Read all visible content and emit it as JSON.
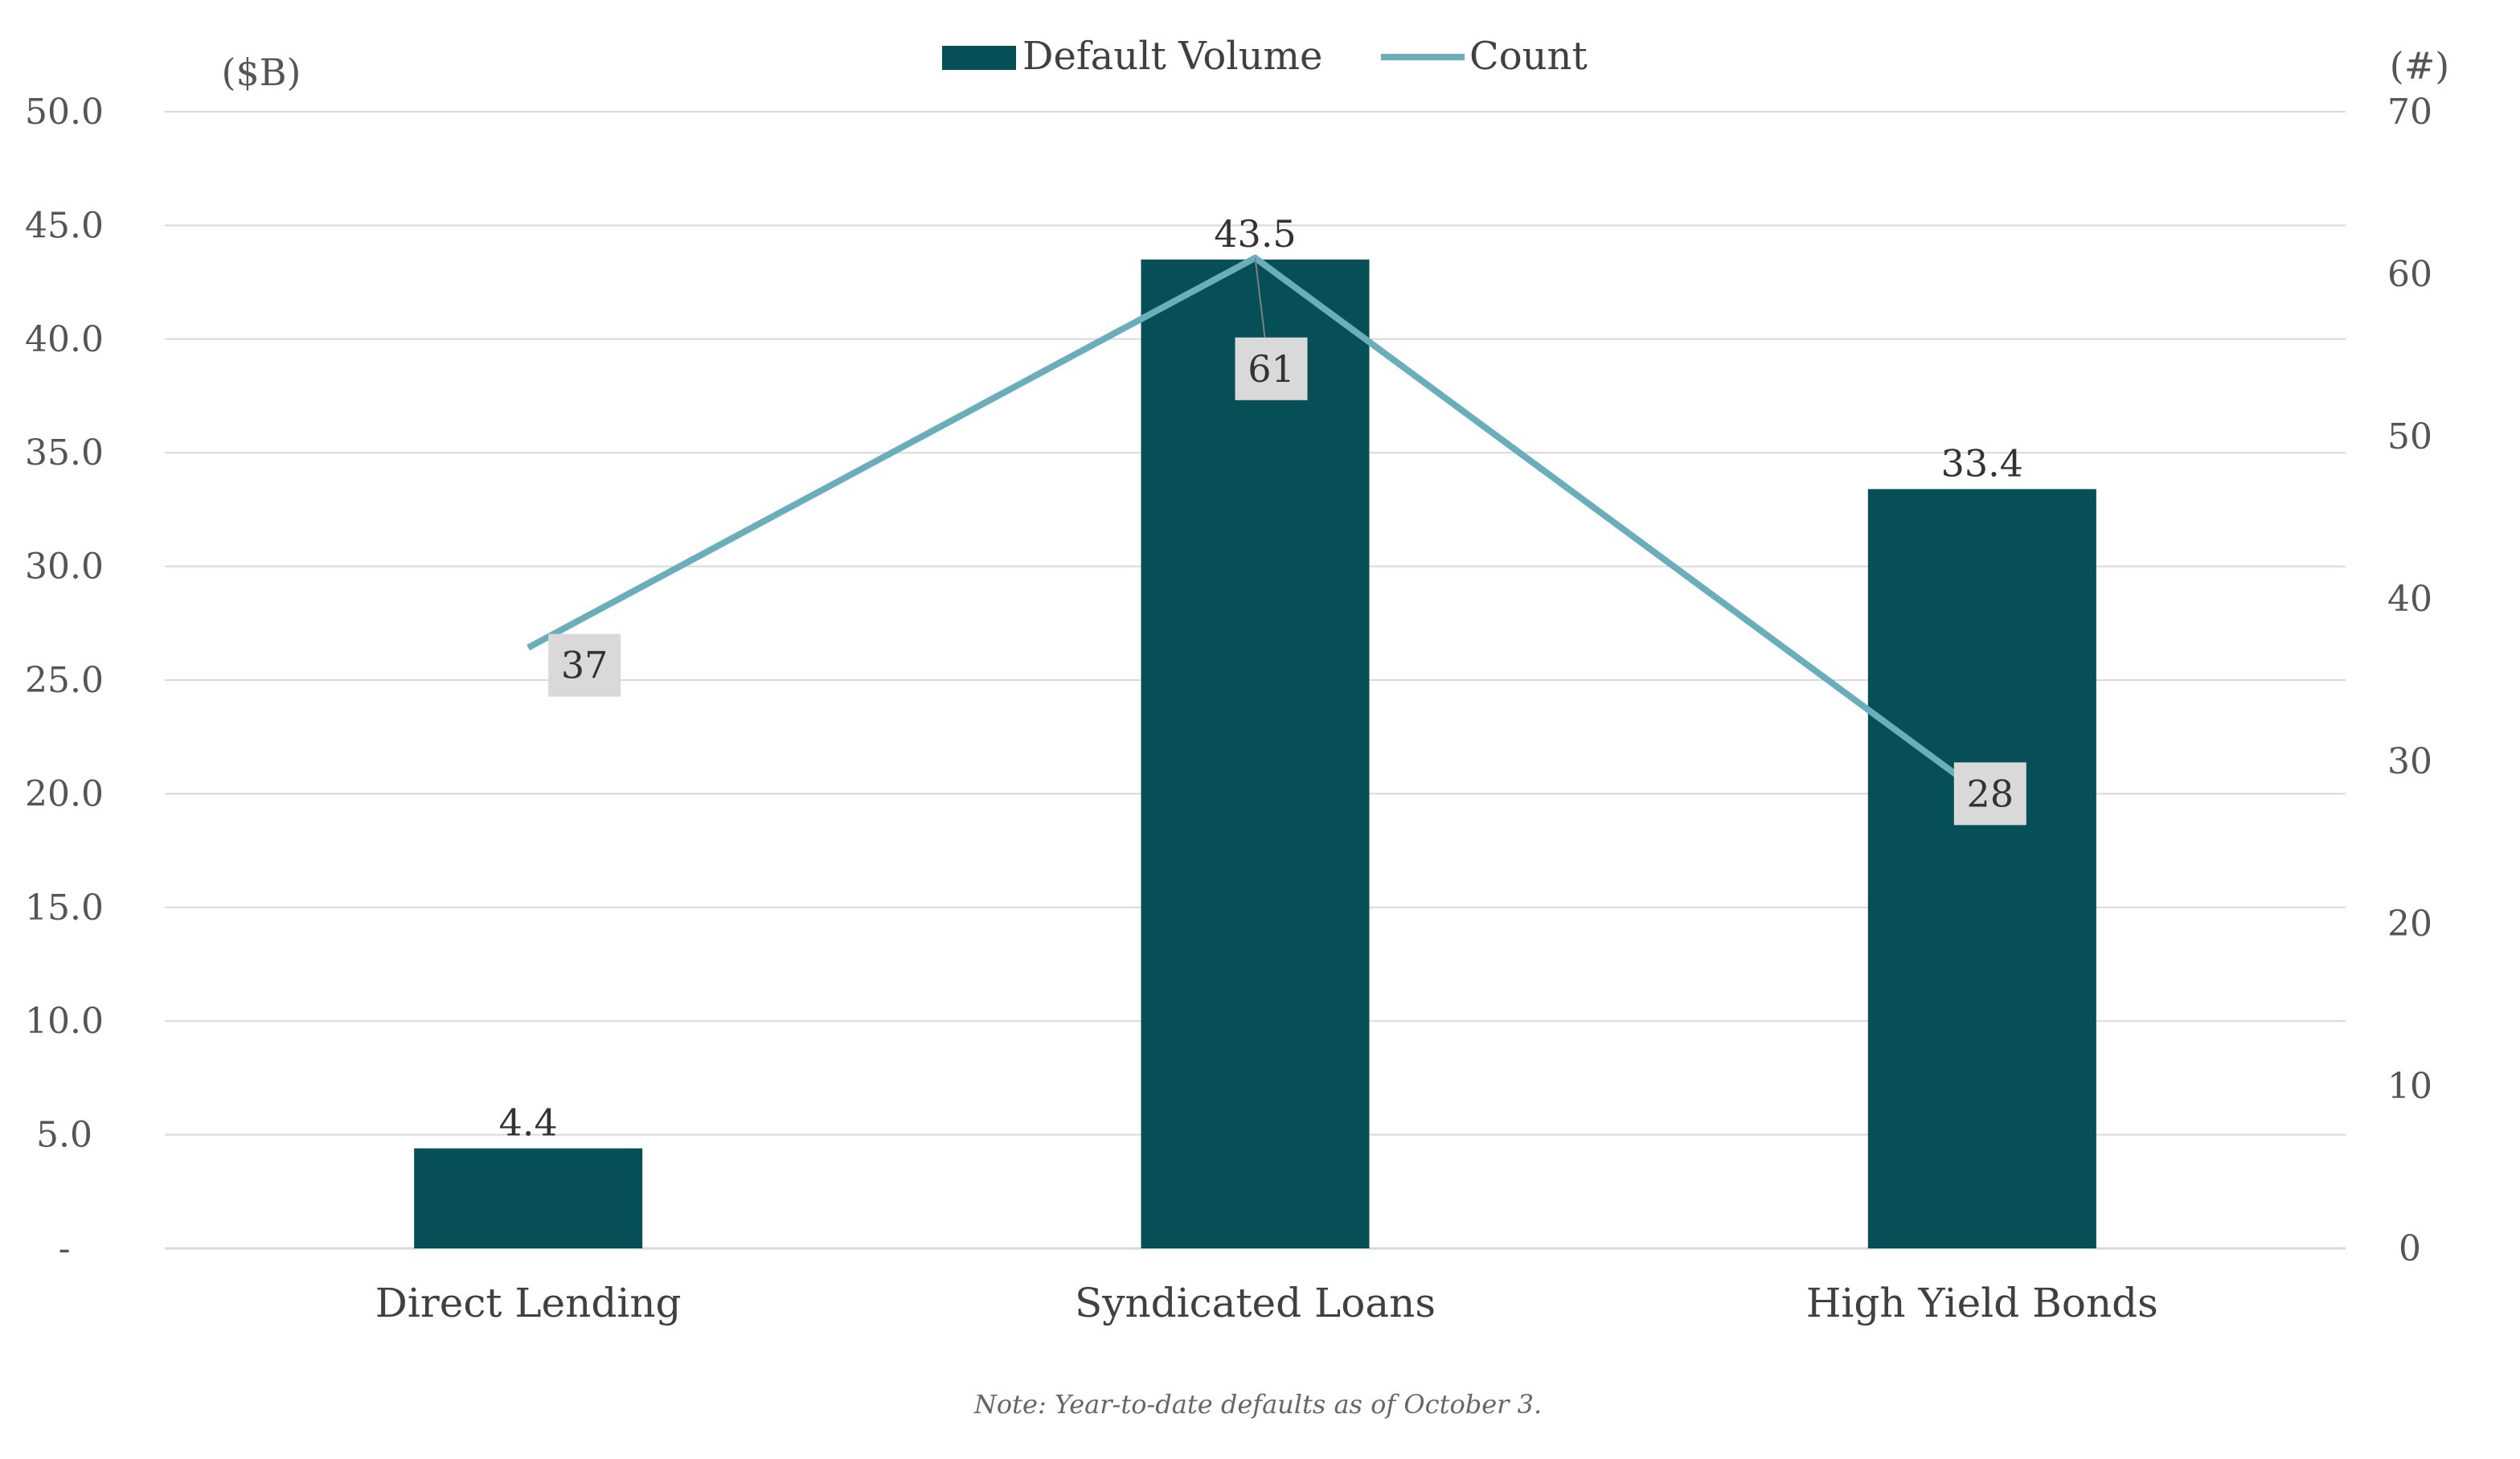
{
  "chart_data": {
    "type": "bar",
    "categories": [
      "Direct Lending",
      "Syndicated Loans",
      "High Yield Bonds"
    ],
    "series": [
      {
        "name": "Default Volume",
        "kind": "bar",
        "axis": "left",
        "values": [
          4.4,
          43.5,
          33.4
        ],
        "labels": [
          "4.4",
          "43.5",
          "33.4"
        ],
        "color": "#074F57"
      },
      {
        "name": "Count",
        "kind": "line",
        "axis": "right",
        "values": [
          37,
          61,
          28
        ],
        "labels": [
          "37",
          "61",
          "28"
        ],
        "color": "#6AADBB"
      }
    ],
    "left_axis": {
      "unit": "($B)",
      "range": [
        0,
        50
      ],
      "ticks": [
        0,
        5,
        10,
        15,
        20,
        25,
        30,
        35,
        40,
        45,
        50
      ],
      "tick_labels": [
        "-",
        "5.0",
        "10.0",
        "15.0",
        "20.0",
        "25.0",
        "30.0",
        "35.0",
        "40.0",
        "45.0",
        "50.0"
      ]
    },
    "right_axis": {
      "unit": "(#)",
      "range": [
        0,
        70
      ],
      "ticks": [
        0,
        10,
        20,
        30,
        40,
        50,
        60,
        70
      ],
      "tick_labels": [
        "0",
        "10",
        "20",
        "30",
        "40",
        "50",
        "60",
        "70"
      ]
    },
    "grid": true,
    "legend": {
      "position": "top-center",
      "entries": [
        "Default Volume",
        "Count"
      ]
    },
    "note": "Note: Year-to-date defaults as of October 3.",
    "colors": {
      "bar": "#074F57",
      "line": "#6AADBB",
      "grid": "#D9D9D9",
      "label_box": "#D9D9D9"
    }
  }
}
